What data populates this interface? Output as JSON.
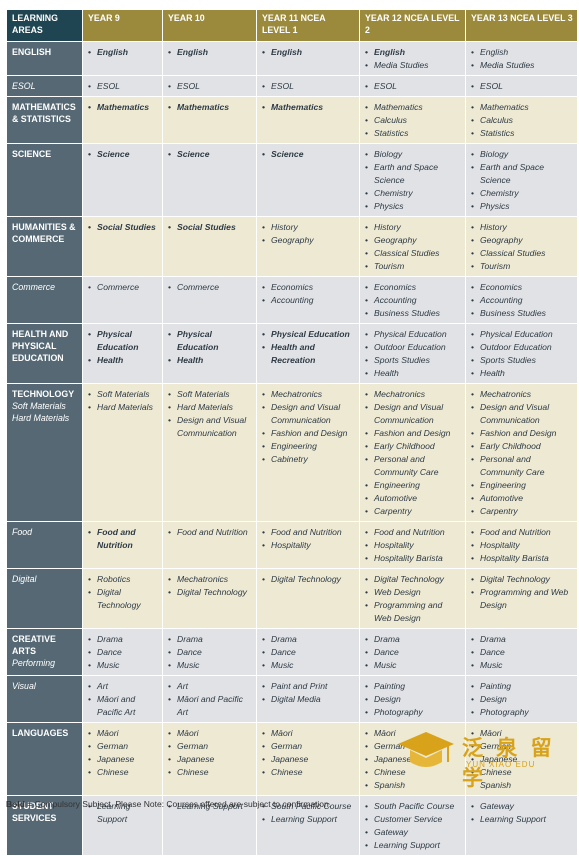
{
  "headers": [
    "LEARNING AREAS",
    "YEAR 9",
    "YEAR 10",
    "YEAR 11 NCEA LEVEL 1",
    "YEAR 12 NCEA LEVEL 2",
    "YEAR 13 NCEA LEVEL 3"
  ],
  "rows": [
    {
      "area": "ENGLISH",
      "sub": "",
      "style": "g",
      "cells": [
        [
          {
            "t": "English",
            "b": 1
          }
        ],
        [
          {
            "t": "English",
            "b": 1
          }
        ],
        [
          {
            "t": "English",
            "b": 1
          }
        ],
        [
          {
            "t": "English",
            "b": 1
          },
          {
            "t": "Media Studies"
          }
        ],
        [
          {
            "t": "English"
          },
          {
            "t": "Media Studies"
          }
        ]
      ]
    },
    {
      "area": "ESOL",
      "sub": "",
      "plain": 1,
      "style": "g",
      "cells": [
        [
          {
            "t": "ESOL"
          }
        ],
        [
          {
            "t": "ESOL"
          }
        ],
        [
          {
            "t": "ESOL"
          }
        ],
        [
          {
            "t": "ESOL"
          }
        ],
        [
          {
            "t": "ESOL"
          }
        ]
      ]
    },
    {
      "area": "MATHEMATICS & STATISTICS",
      "sub": "",
      "style": "b",
      "cells": [
        [
          {
            "t": "Mathematics",
            "b": 1
          }
        ],
        [
          {
            "t": "Mathematics",
            "b": 1
          }
        ],
        [
          {
            "t": "Mathematics",
            "b": 1
          }
        ],
        [
          {
            "t": "Mathematics"
          },
          {
            "t": "Calculus"
          },
          {
            "t": "Statistics"
          }
        ],
        [
          {
            "t": "Mathematics"
          },
          {
            "t": "Calculus"
          },
          {
            "t": "Statistics"
          }
        ]
      ]
    },
    {
      "area": "SCIENCE",
      "sub": "",
      "style": "g",
      "cells": [
        [
          {
            "t": "Science",
            "b": 1
          }
        ],
        [
          {
            "t": "Science",
            "b": 1
          }
        ],
        [
          {
            "t": "Science",
            "b": 1
          }
        ],
        [
          {
            "t": "Biology"
          },
          {
            "t": "Earth and Space Science"
          },
          {
            "t": "Chemistry"
          },
          {
            "t": "Physics"
          }
        ],
        [
          {
            "t": "Biology"
          },
          {
            "t": "Earth and Space Science"
          },
          {
            "t": "Chemistry"
          },
          {
            "t": "Physics"
          }
        ]
      ]
    },
    {
      "area": "HUMANITIES & COMMERCE",
      "sub": "",
      "style": "b",
      "cells": [
        [
          {
            "t": "Social Studies",
            "b": 1
          }
        ],
        [
          {
            "t": "Social Studies",
            "b": 1
          }
        ],
        [
          {
            "t": "History"
          },
          {
            "t": "Geography"
          }
        ],
        [
          {
            "t": "History"
          },
          {
            "t": "Geography"
          },
          {
            "t": "Classical Studies"
          },
          {
            "t": "Tourism"
          }
        ],
        [
          {
            "t": "History"
          },
          {
            "t": "Geography"
          },
          {
            "t": "Classical Studies"
          },
          {
            "t": "Tourism"
          }
        ]
      ]
    },
    {
      "area": "Commerce",
      "sub": "",
      "plain": 1,
      "style": "g",
      "cells": [
        [
          {
            "t": "Commerce"
          }
        ],
        [
          {
            "t": "Commerce"
          }
        ],
        [
          {
            "t": "Economics"
          },
          {
            "t": "Accounting"
          }
        ],
        [
          {
            "t": "Economics"
          },
          {
            "t": "Accounting"
          },
          {
            "t": "Business Studies"
          }
        ],
        [
          {
            "t": "Economics"
          },
          {
            "t": "Accounting"
          },
          {
            "t": "Business Studies"
          }
        ]
      ]
    },
    {
      "area": "HEALTH AND PHYSICAL EDUCATION",
      "sub": "",
      "style": "g",
      "cells": [
        [
          {
            "t": "Physical Education",
            "b": 1
          },
          {
            "t": "Health",
            "b": 1
          }
        ],
        [
          {
            "t": "Physical Education",
            "b": 1
          },
          {
            "t": "Health",
            "b": 1
          }
        ],
        [
          {
            "t": "Physical Education",
            "b": 1
          },
          {
            "t": "Health and Recreation",
            "b": 1
          }
        ],
        [
          {
            "t": "Physical Education"
          },
          {
            "t": "Outdoor Education"
          },
          {
            "t": "Sports Studies"
          },
          {
            "t": "Health"
          }
        ],
        [
          {
            "t": "Physical Education"
          },
          {
            "t": "Outdoor Education"
          },
          {
            "t": "Sports Studies"
          },
          {
            "t": "Health"
          }
        ]
      ]
    },
    {
      "area": "TECHNOLOGY",
      "sub": "Soft Materials Hard Materials",
      "style": "b",
      "cells": [
        [
          {
            "t": "Soft Materials"
          },
          {
            "t": "Hard Materials"
          }
        ],
        [
          {
            "t": "Soft Materials"
          },
          {
            "t": "Hard Materials"
          },
          {
            "t": "Design and Visual Communication"
          }
        ],
        [
          {
            "t": "Mechatronics"
          },
          {
            "t": "Design and Visual Communication"
          },
          {
            "t": "Fashion and Design"
          },
          {
            "t": "Engineering"
          },
          {
            "t": "Cabinetry"
          }
        ],
        [
          {
            "t": "Mechatronics"
          },
          {
            "t": "Design and Visual Communication"
          },
          {
            "t": "Fashion and Design"
          },
          {
            "t": "Early Childhood"
          },
          {
            "t": "Personal and Community Care"
          },
          {
            "t": "Engineering"
          },
          {
            "t": "Automotive"
          },
          {
            "t": "Carpentry"
          }
        ],
        [
          {
            "t": "Mechatronics"
          },
          {
            "t": "Design and Visual Communication"
          },
          {
            "t": "Fashion and Design"
          },
          {
            "t": "Early Childhood"
          },
          {
            "t": "Personal and Community Care"
          },
          {
            "t": "Engineering"
          },
          {
            "t": "Automotive"
          },
          {
            "t": "Carpentry"
          }
        ]
      ]
    },
    {
      "area": "Food",
      "sub": "",
      "plain": 1,
      "style": "b",
      "cells": [
        [
          {
            "t": "Food and Nutrition",
            "b": 1
          }
        ],
        [
          {
            "t": "Food and Nutrition"
          }
        ],
        [
          {
            "t": "Food and Nutrition"
          },
          {
            "t": "Hospitality"
          }
        ],
        [
          {
            "t": "Food and Nutrition"
          },
          {
            "t": "Hospitality"
          },
          {
            "t": "Hospitality Barista"
          }
        ],
        [
          {
            "t": "Food and Nutrition"
          },
          {
            "t": "Hospitality"
          },
          {
            "t": "Hospitality Barista"
          }
        ]
      ]
    },
    {
      "area": "Digital",
      "sub": "",
      "plain": 1,
      "style": "b",
      "cells": [
        [
          {
            "t": "Robotics"
          },
          {
            "t": "Digital Technology"
          }
        ],
        [
          {
            "t": "Mechatronics"
          },
          {
            "t": "Digital Technology"
          }
        ],
        [
          {
            "t": "Digital Technology"
          }
        ],
        [
          {
            "t": "Digital Technology"
          },
          {
            "t": "Web Design"
          },
          {
            "t": "Programming and Web Design"
          }
        ],
        [
          {
            "t": "Digital Technology"
          },
          {
            "t": "Programming and Web Design"
          }
        ]
      ]
    },
    {
      "area": "CREATIVE ARTS",
      "sub": "Performing",
      "style": "g",
      "cells": [
        [
          {
            "t": "Drama"
          },
          {
            "t": "Dance"
          },
          {
            "t": "Music"
          }
        ],
        [
          {
            "t": "Drama"
          },
          {
            "t": "Dance"
          },
          {
            "t": "Music"
          }
        ],
        [
          {
            "t": "Drama"
          },
          {
            "t": "Dance"
          },
          {
            "t": "Music"
          }
        ],
        [
          {
            "t": "Drama"
          },
          {
            "t": "Dance"
          },
          {
            "t": "Music"
          }
        ],
        [
          {
            "t": "Drama"
          },
          {
            "t": "Dance"
          },
          {
            "t": "Music"
          }
        ]
      ]
    },
    {
      "area": "Visual",
      "sub": "",
      "plain": 1,
      "style": "g",
      "cells": [
        [
          {
            "t": "Art"
          },
          {
            "t": "Māori and Pacific Art"
          }
        ],
        [
          {
            "t": "Art"
          },
          {
            "t": "Māori and Pacific Art"
          }
        ],
        [
          {
            "t": "Paint and Print"
          },
          {
            "t": "Digital Media"
          }
        ],
        [
          {
            "t": "Painting"
          },
          {
            "t": "Design"
          },
          {
            "t": "Photography"
          }
        ],
        [
          {
            "t": "Painting"
          },
          {
            "t": "Design"
          },
          {
            "t": "Photography"
          }
        ]
      ]
    },
    {
      "area": "LANGUAGES",
      "sub": "",
      "style": "b",
      "cells": [
        [
          {
            "t": "Māori"
          },
          {
            "t": "German"
          },
          {
            "t": "Japanese"
          },
          {
            "t": "Chinese"
          }
        ],
        [
          {
            "t": "Māori"
          },
          {
            "t": "German"
          },
          {
            "t": "Japanese"
          },
          {
            "t": "Chinese"
          }
        ],
        [
          {
            "t": "Māori"
          },
          {
            "t": "German"
          },
          {
            "t": "Japanese"
          },
          {
            "t": "Chinese"
          }
        ],
        [
          {
            "t": "Māori"
          },
          {
            "t": "German"
          },
          {
            "t": "Japanese"
          },
          {
            "t": "Chinese"
          },
          {
            "t": "Spanish"
          }
        ],
        [
          {
            "t": "Māori"
          },
          {
            "t": "German"
          },
          {
            "t": "Japanese"
          },
          {
            "t": "Chinese"
          },
          {
            "t": "Spanish"
          }
        ]
      ]
    },
    {
      "area": "STUDENT SERVICES",
      "sub": "",
      "style": "g",
      "cells": [
        [
          {
            "t": "Learning Support"
          }
        ],
        [
          {
            "t": "Learning Support"
          }
        ],
        [
          {
            "t": "South Pacific Course"
          },
          {
            "t": "Learning Support"
          }
        ],
        [
          {
            "t": "South Pacific Course"
          },
          {
            "t": "Customer Service"
          },
          {
            "t": "Gateway"
          },
          {
            "t": "Learning Support"
          }
        ],
        [
          {
            "t": "Gateway"
          },
          {
            "t": "Learning Support"
          }
        ]
      ]
    }
  ],
  "footer": {
    "bold": "Bold",
    "text": " = Compulsory Subject. Please Note: Courses offered are subject to confirmation."
  },
  "watermark": {
    "text": "泛 泉 留 学",
    "sub": "YUN XIAO EDU"
  }
}
